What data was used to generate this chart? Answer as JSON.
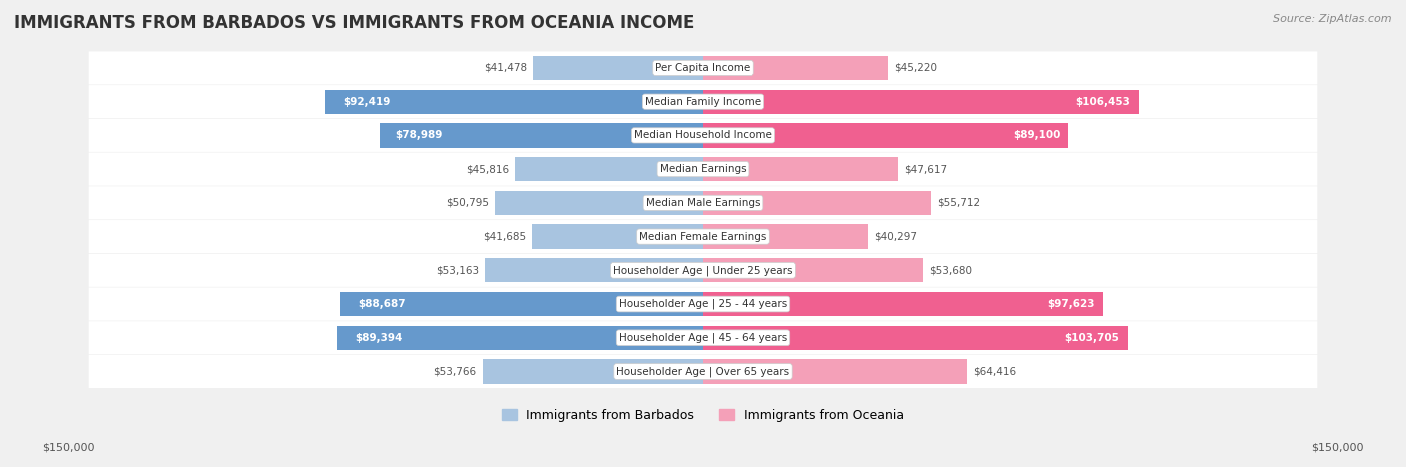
{
  "title": "IMMIGRANTS FROM BARBADOS VS IMMIGRANTS FROM OCEANIA INCOME",
  "source": "Source: ZipAtlas.com",
  "categories": [
    "Per Capita Income",
    "Median Family Income",
    "Median Household Income",
    "Median Earnings",
    "Median Male Earnings",
    "Median Female Earnings",
    "Householder Age | Under 25 years",
    "Householder Age | 25 - 44 years",
    "Householder Age | 45 - 64 years",
    "Householder Age | Over 65 years"
  ],
  "barbados_values": [
    41478,
    92419,
    78989,
    45816,
    50795,
    41685,
    53163,
    88687,
    89394,
    53766
  ],
  "oceania_values": [
    45220,
    106453,
    89100,
    47617,
    55712,
    40297,
    53680,
    97623,
    103705,
    64416
  ],
  "barbados_labels": [
    "$41,478",
    "$92,419",
    "$78,989",
    "$45,816",
    "$50,795",
    "$41,685",
    "$53,163",
    "$88,687",
    "$89,394",
    "$53,766"
  ],
  "oceania_labels": [
    "$45,220",
    "$106,453",
    "$89,100",
    "$47,617",
    "$55,712",
    "$40,297",
    "$53,680",
    "$97,623",
    "$103,705",
    "$64,416"
  ],
  "max_value": 150000,
  "bar_color_barbados_light": "#a8c4e0",
  "bar_color_barbados_dark": "#6699cc",
  "bar_color_oceania_light": "#f4a0b8",
  "bar_color_oceania_dark": "#f06090",
  "label_color_light": "#555555",
  "label_color_dark": "#ffffff",
  "background_color": "#f0f0f0",
  "row_bg_color": "#ffffff",
  "legend_barbados": "Immigrants from Barbados",
  "legend_oceania": "Immigrants from Oceania",
  "axis_label_left": "$150,000",
  "axis_label_right": "$150,000",
  "threshold_dark_label": 70000
}
